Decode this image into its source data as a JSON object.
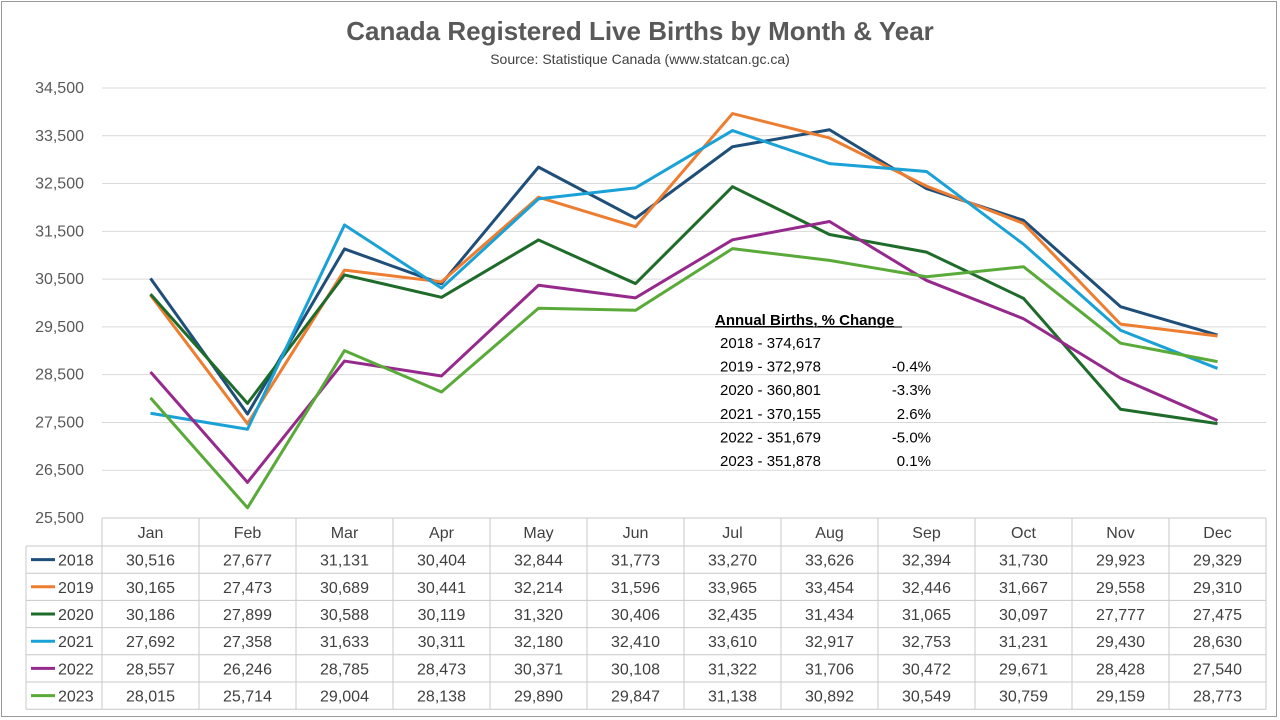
{
  "chart_data": {
    "type": "line",
    "title": "Canada Registered Live Births by Month & Year",
    "subtitle": "Source: Statistique Canada (www.statcan.gc.ca)",
    "xlabel": "",
    "ylabel": "",
    "ylim": [
      25500,
      34500
    ],
    "yticks": [
      "34,500",
      "33,500",
      "32,500",
      "31,500",
      "30,500",
      "29,500",
      "28,500",
      "27,500",
      "26,500",
      "25,500"
    ],
    "ytick_values": [
      34500,
      33500,
      32500,
      31500,
      30500,
      29500,
      28500,
      27500,
      26500,
      25500
    ],
    "grid": true,
    "legend": "data-table",
    "categories": [
      "Jan",
      "Feb",
      "Mar",
      "Apr",
      "May",
      "Jun",
      "Jul",
      "Aug",
      "Sep",
      "Oct",
      "Nov",
      "Dec"
    ],
    "series": [
      {
        "name": "2018",
        "color": "#1f4e79",
        "values": [
          30516,
          27677,
          31131,
          30404,
          32844,
          31773,
          33270,
          33626,
          32394,
          31730,
          29923,
          29329
        ],
        "labels": [
          "30,516",
          "27,677",
          "31,131",
          "30,404",
          "32,844",
          "31,773",
          "33,270",
          "33,626",
          "32,394",
          "31,730",
          "29,923",
          "29,329"
        ]
      },
      {
        "name": "2019",
        "color": "#ed7d31",
        "values": [
          30165,
          27473,
          30689,
          30441,
          32214,
          31596,
          33965,
          33454,
          32446,
          31667,
          29558,
          29310
        ],
        "labels": [
          "30,165",
          "27,473",
          "30,689",
          "30,441",
          "32,214",
          "31,596",
          "33,965",
          "33,454",
          "32,446",
          "31,667",
          "29,558",
          "29,310"
        ]
      },
      {
        "name": "2020",
        "color": "#1e6b2a",
        "values": [
          30186,
          27899,
          30588,
          30119,
          31320,
          30406,
          32435,
          31434,
          31065,
          30097,
          27777,
          27475
        ],
        "labels": [
          "30,186",
          "27,899",
          "30,588",
          "30,119",
          "31,320",
          "30,406",
          "32,435",
          "31,434",
          "31,065",
          "30,097",
          "27,777",
          "27,475"
        ]
      },
      {
        "name": "2021",
        "color": "#1aa1d6",
        "values": [
          27692,
          27358,
          31633,
          30311,
          32180,
          32410,
          33610,
          32917,
          32753,
          31231,
          29430,
          28630
        ],
        "labels": [
          "27,692",
          "27,358",
          "31,633",
          "30,311",
          "32,180",
          "32,410",
          "33,610",
          "32,917",
          "32,753",
          "31,231",
          "29,430",
          "28,630"
        ]
      },
      {
        "name": "2022",
        "color": "#952a8c",
        "values": [
          28557,
          26246,
          28785,
          28473,
          30371,
          30108,
          31322,
          31706,
          30472,
          29671,
          28428,
          27540
        ],
        "labels": [
          "28,557",
          "26,246",
          "28,785",
          "28,473",
          "30,371",
          "30,108",
          "31,322",
          "31,706",
          "30,472",
          "29,671",
          "28,428",
          "27,540"
        ]
      },
      {
        "name": "2023",
        "color": "#5aaa3a",
        "values": [
          28015,
          25714,
          29004,
          28138,
          29890,
          29847,
          31138,
          30892,
          30549,
          30759,
          29159,
          28773
        ],
        "labels": [
          "28,015",
          "25,714",
          "29,004",
          "28,138",
          "29,890",
          "29,847",
          "31,138",
          "30,892",
          "30,549",
          "30,759",
          "29,159",
          "28,773"
        ]
      }
    ],
    "annotation": {
      "heading": "Annual Births, % Change",
      "rows": [
        {
          "label": "2018 - 374,617",
          "change": ""
        },
        {
          "label": "2019 - 372,978",
          "change": "-0.4%"
        },
        {
          "label": "2020 - 360,801",
          "change": "-3.3%"
        },
        {
          "label": "2021 - 370,155",
          "change": "2.6%"
        },
        {
          "label": "2022 - 351,679",
          "change": "-5.0%"
        },
        {
          "label": "2023 - 351,878",
          "change": "0.1%"
        }
      ]
    }
  }
}
